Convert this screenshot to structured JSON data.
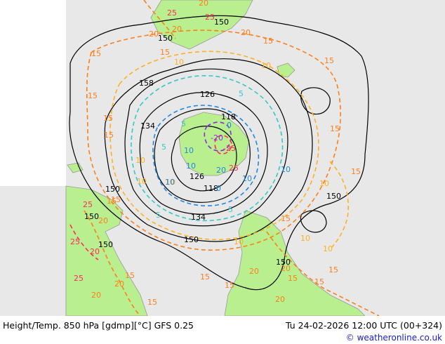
{
  "colors": {
    "ocean": "#e8e8e8",
    "land": "#b9ef8f",
    "height_contour": "#000000",
    "temp_warm": "#ff7f1a",
    "temp_mild": "#ffb020",
    "temp_cool": "#34c8c8",
    "temp_cold": "#1e88e5",
    "temp_very_cold": "#8a2be2",
    "temp_hot": "#ff2a5a",
    "brand": "#1a1acc"
  },
  "footer": {
    "title": "Height/Temp. 850 hPa [gdmp][°C] GFS 0.25",
    "datetime": "Tu 24-02-2026 12:00 UTC (00+324)",
    "brand": "© weatheronline.co.uk"
  },
  "height_labels": [
    "150",
    "150",
    "158",
    "126",
    "134",
    "118",
    "126",
    "150",
    "118",
    "150",
    "134",
    "150",
    "150",
    "150",
    "150"
  ],
  "temp_labels": [
    "20",
    "25",
    "25",
    "20",
    "20",
    "15",
    "15",
    "15",
    "10",
    "15",
    "10",
    "15",
    "15",
    "15",
    "15",
    "15",
    "10",
    "15",
    "10",
    "5",
    "0",
    "10",
    "10",
    "10",
    "10",
    "15",
    "5",
    "5",
    "25",
    "20",
    "15",
    "10",
    "5",
    "10",
    "10",
    "10",
    "15",
    "15",
    "25",
    "20",
    "15",
    "20",
    "20",
    "15",
    "25",
    "20",
    "15",
    "20",
    "15",
    "20",
    "25",
    "20",
    "10",
    "10",
    "5",
    "0",
    "-20",
    "-25",
    "20",
    "15"
  ]
}
